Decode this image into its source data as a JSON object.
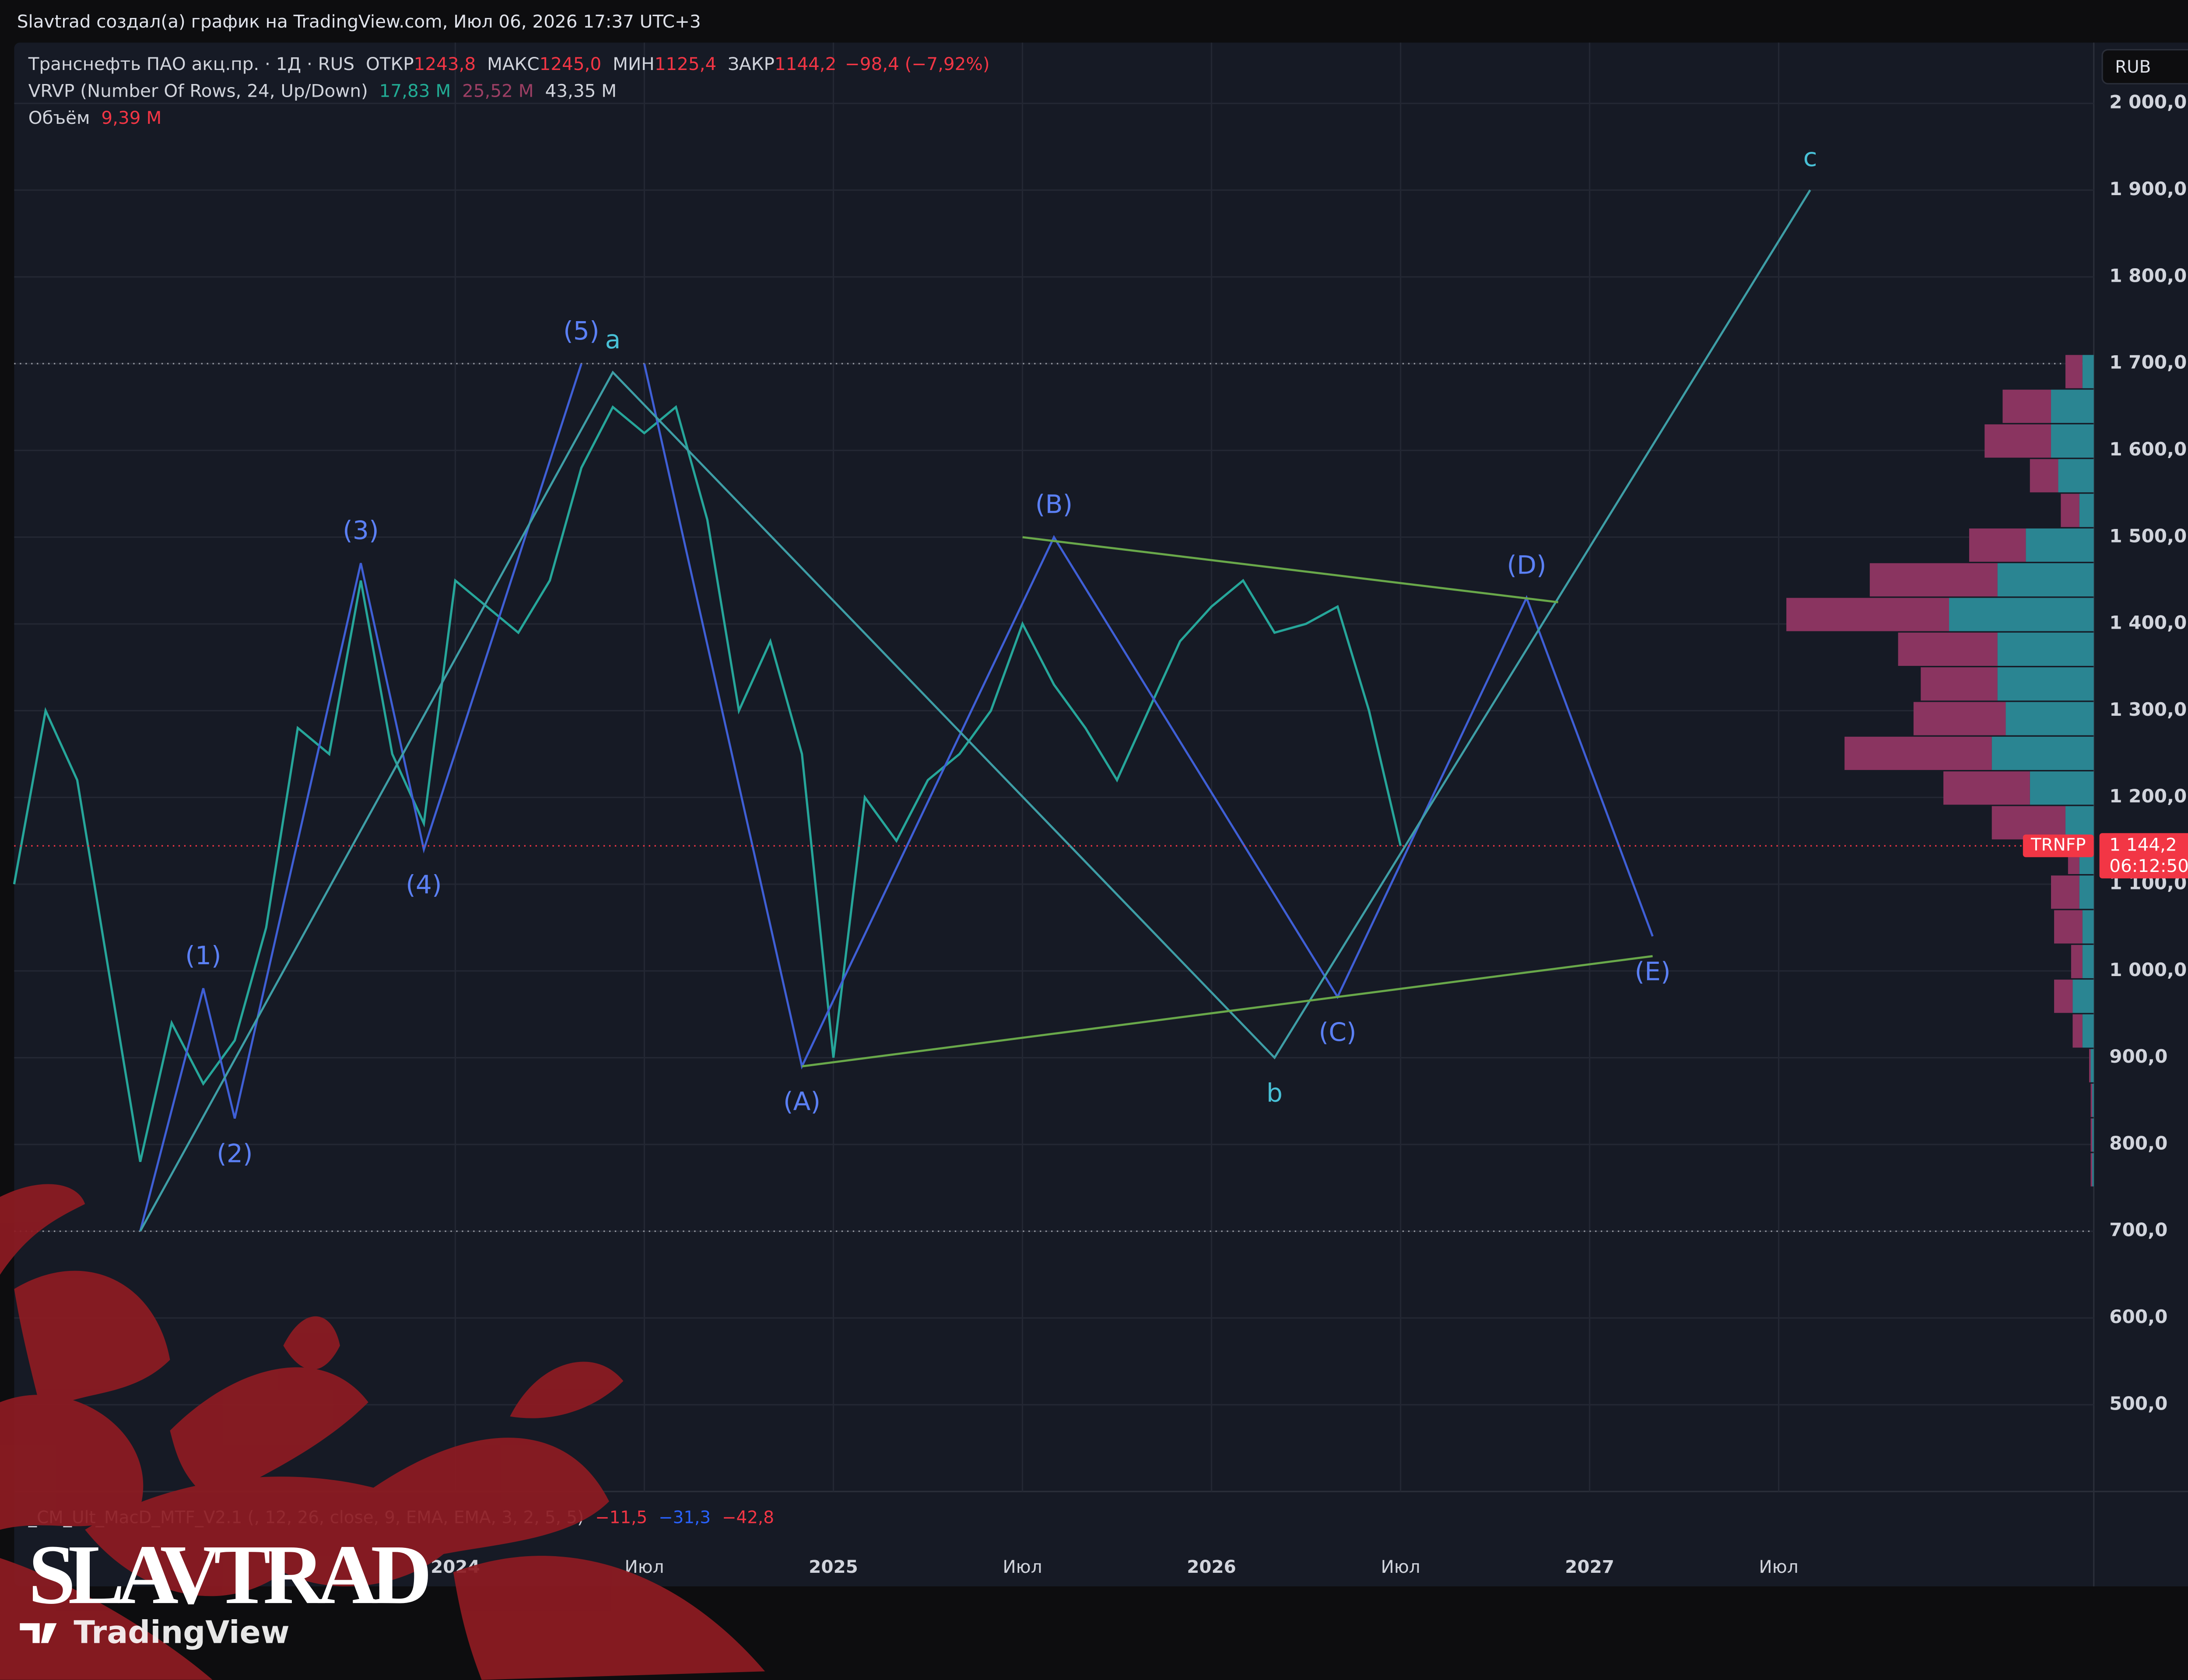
{
  "chart_data": {
    "type": "line",
    "attribution": "Slavtrad создал(а) график на TradingView.com, Июл 06, 2026 17:37 UTC+3",
    "title": "Транснефть ПАО акц.пр. · 1Д · RUS",
    "ohlc": [
      {
        "name": "ОТКР",
        "value": 1243.8,
        "label": "1243,8"
      },
      {
        "name": "МАКС",
        "value": 1245.0,
        "label": "1245,0"
      },
      {
        "name": "МИН",
        "value": 1125.4,
        "label": "1125,4"
      },
      {
        "name": "ЗАКР",
        "value": 1144.2,
        "label": "1144,2"
      }
    ],
    "change": "−98,4 (−7,92%)",
    "indicators": [
      {
        "name": "VRVP (Number Of Rows, 24, Up/Down)",
        "values": [
          {
            "value": 17.83,
            "label": "17,83 M",
            "color": "#22ab94"
          },
          {
            "value": 25.52,
            "label": "25,52 M",
            "color": "#9c3f64"
          },
          {
            "value": 43.35,
            "label": "43,35 M",
            "color": "#d1d4dc"
          }
        ]
      },
      {
        "name": "Объём",
        "values": [
          {
            "value": 9.39,
            "label": "9,39 M",
            "color": "#f23645"
          }
        ]
      },
      {
        "name": "_CM_Ult_MacD_MTF_V2.1 (, 12, 26, close, 9, EMA, EMA, 3, 2, 5, 5)",
        "values": [
          {
            "value": -11.5,
            "label": "−11,5",
            "color": "#f23645"
          },
          {
            "value": -31.3,
            "label": "−31,3",
            "color": "#2962ff"
          },
          {
            "value": -42.8,
            "label": "−42,8",
            "color": "#f23645"
          }
        ]
      }
    ],
    "currency": "RUB",
    "symbol": "TRNFP",
    "last": {
      "value": 1144.2,
      "label": "1 144,2"
    },
    "countdown": "06:12:50",
    "x": [
      "2022-11",
      "2022-12",
      "2023-01",
      "2023-02",
      "2023-03",
      "2023-04",
      "2023-05",
      "2023-06",
      "2023-07",
      "2023-08",
      "2023-09",
      "2023-10",
      "2023-11",
      "2023-12",
      "2024-01",
      "2024-02",
      "2024-03",
      "2024-04",
      "2024-05",
      "2024-06",
      "2024-07",
      "2024-08",
      "2024-09",
      "2024-10",
      "2024-11",
      "2024-12",
      "2025-01",
      "2025-02",
      "2025-03",
      "2025-04",
      "2025-05",
      "2025-06",
      "2025-07",
      "2025-08",
      "2025-09",
      "2025-10",
      "2025-11",
      "2025-12",
      "2026-01",
      "2026-02",
      "2026-03",
      "2026-04",
      "2026-05",
      "2026-06",
      "2026-07"
    ],
    "values": [
      1100,
      1300,
      1220,
      1000,
      780,
      940,
      870,
      920,
      1050,
      1280,
      1250,
      1450,
      1250,
      1170,
      1450,
      1420,
      1390,
      1450,
      1580,
      1650,
      1620,
      1650,
      1520,
      1300,
      1380,
      1250,
      900,
      1200,
      1150,
      1220,
      1250,
      1300,
      1400,
      1330,
      1280,
      1220,
      1300,
      1380,
      1420,
      1450,
      1390,
      1400,
      1420,
      1300,
      1144.2
    ],
    "color": "#26a69a",
    "xlim": [
      "2022-11",
      "2028-05"
    ],
    "xticks": [
      {
        "value": "2024-01",
        "label": "2024"
      },
      {
        "value": "2024-07",
        "label": "Июл"
      },
      {
        "value": "2025-01",
        "label": "2025"
      },
      {
        "value": "2025-07",
        "label": "Июл"
      },
      {
        "value": "2026-01",
        "label": "2026"
      },
      {
        "value": "2026-07",
        "label": "Июл"
      },
      {
        "value": "2027-01",
        "label": "2027"
      },
      {
        "value": "2027-07",
        "label": "Июл"
      }
    ],
    "ylim": [
      400,
      2070
    ],
    "yticks": [
      {
        "value": 2000,
        "label": "2 000,0"
      },
      {
        "value": 1900,
        "label": "1 900,0"
      },
      {
        "value": 1800,
        "label": "1 800,0"
      },
      {
        "value": 1700,
        "label": "1 700,0"
      },
      {
        "value": 1600,
        "label": "1 600,0"
      },
      {
        "value": 1500,
        "label": "1 500,0"
      },
      {
        "value": 1400,
        "label": "1 400,0"
      },
      {
        "value": 1300,
        "label": "1 300,0"
      },
      {
        "value": 1200,
        "label": "1 200,0"
      },
      {
        "value": 1100,
        "label": "1 100,0"
      },
      {
        "value": 1000,
        "label": "1 000,0"
      },
      {
        "value": 900,
        "label": "900,0"
      },
      {
        "value": 800,
        "label": "800,0"
      },
      {
        "value": 700,
        "label": "700,0"
      },
      {
        "value": 600,
        "label": "600,0"
      },
      {
        "value": 500,
        "label": "500,0"
      }
    ],
    "grid": true,
    "levels": [
      1700,
      700
    ],
    "waves": [
      {
        "color": "#3f5fd6",
        "label_color": "#5b80f5",
        "x": [
          "2023-03",
          "2023-05",
          "2023-06",
          "2023-10",
          "2023-12",
          "2024-05"
        ],
        "y": [
          700,
          980,
          830,
          1470,
          1140,
          1700
        ],
        "labels": [
          null,
          "(1)",
          "(2)",
          "(3)",
          "(4)",
          "(5)"
        ]
      },
      {
        "color": "#3f5fd6",
        "label_color": "#5b80f5",
        "x": [
          "2024-07",
          "2024-12",
          "2025-08",
          "2026-05",
          "2026-11",
          "2027-03"
        ],
        "y": [
          1700,
          890,
          1500,
          970,
          1430,
          1040
        ],
        "labels": [
          null,
          "(A)",
          "(B)",
          "(C)",
          "(D)",
          "(E)"
        ]
      },
      {
        "color": "#3e9ea6",
        "label_color": "#48c0d6",
        "x": [
          "2023-03",
          "2024-06",
          "2026-03",
          "2027-08"
        ],
        "y": [
          700,
          1690,
          900,
          1900
        ],
        "labels": [
          null,
          "a",
          "b",
          "c"
        ]
      },
      {
        "color": "#69a84a",
        "label_color": "#69a84a",
        "x": [
          "2025-07",
          "2026-12"
        ],
        "y": [
          1500,
          1425
        ],
        "labels": [
          null,
          null
        ]
      },
      {
        "color": "#69a84a",
        "label_color": "#69a84a",
        "x": [
          "2024-12",
          "2027-03"
        ],
        "y": [
          890,
          1017
        ],
        "labels": [
          null,
          null
        ]
      }
    ],
    "profile": {
      "bins": [
        750,
        790,
        830,
        870,
        910,
        950,
        990,
        1030,
        1070,
        1110,
        1150,
        1190,
        1230,
        1270,
        1310,
        1350,
        1390,
        1430,
        1470,
        1510,
        1550,
        1590,
        1630,
        1670,
        1710
      ],
      "up": [
        0.03,
        0.03,
        0.03,
        0.06,
        0.22,
        0.41,
        0.22,
        0.22,
        0.28,
        0.28,
        0.55,
        1.24,
        1.98,
        1.71,
        1.87,
        1.87,
        2.81,
        1.87,
        1.32,
        0.28,
        0.69,
        0.83,
        0.83,
        0.22
      ],
      "down": [
        0.03,
        0.03,
        0.03,
        0.03,
        0.19,
        0.36,
        0.22,
        0.55,
        0.55,
        0.22,
        1.43,
        1.68,
        2.86,
        1.79,
        1.49,
        1.93,
        3.16,
        2.48,
        1.1,
        0.36,
        0.55,
        1.29,
        0.94,
        0.33
      ],
      "colors": [
        "#2a8592",
        "#8a3460"
      ]
    },
    "watermark": "SLAVTRAD",
    "brand": "TradingView"
  }
}
